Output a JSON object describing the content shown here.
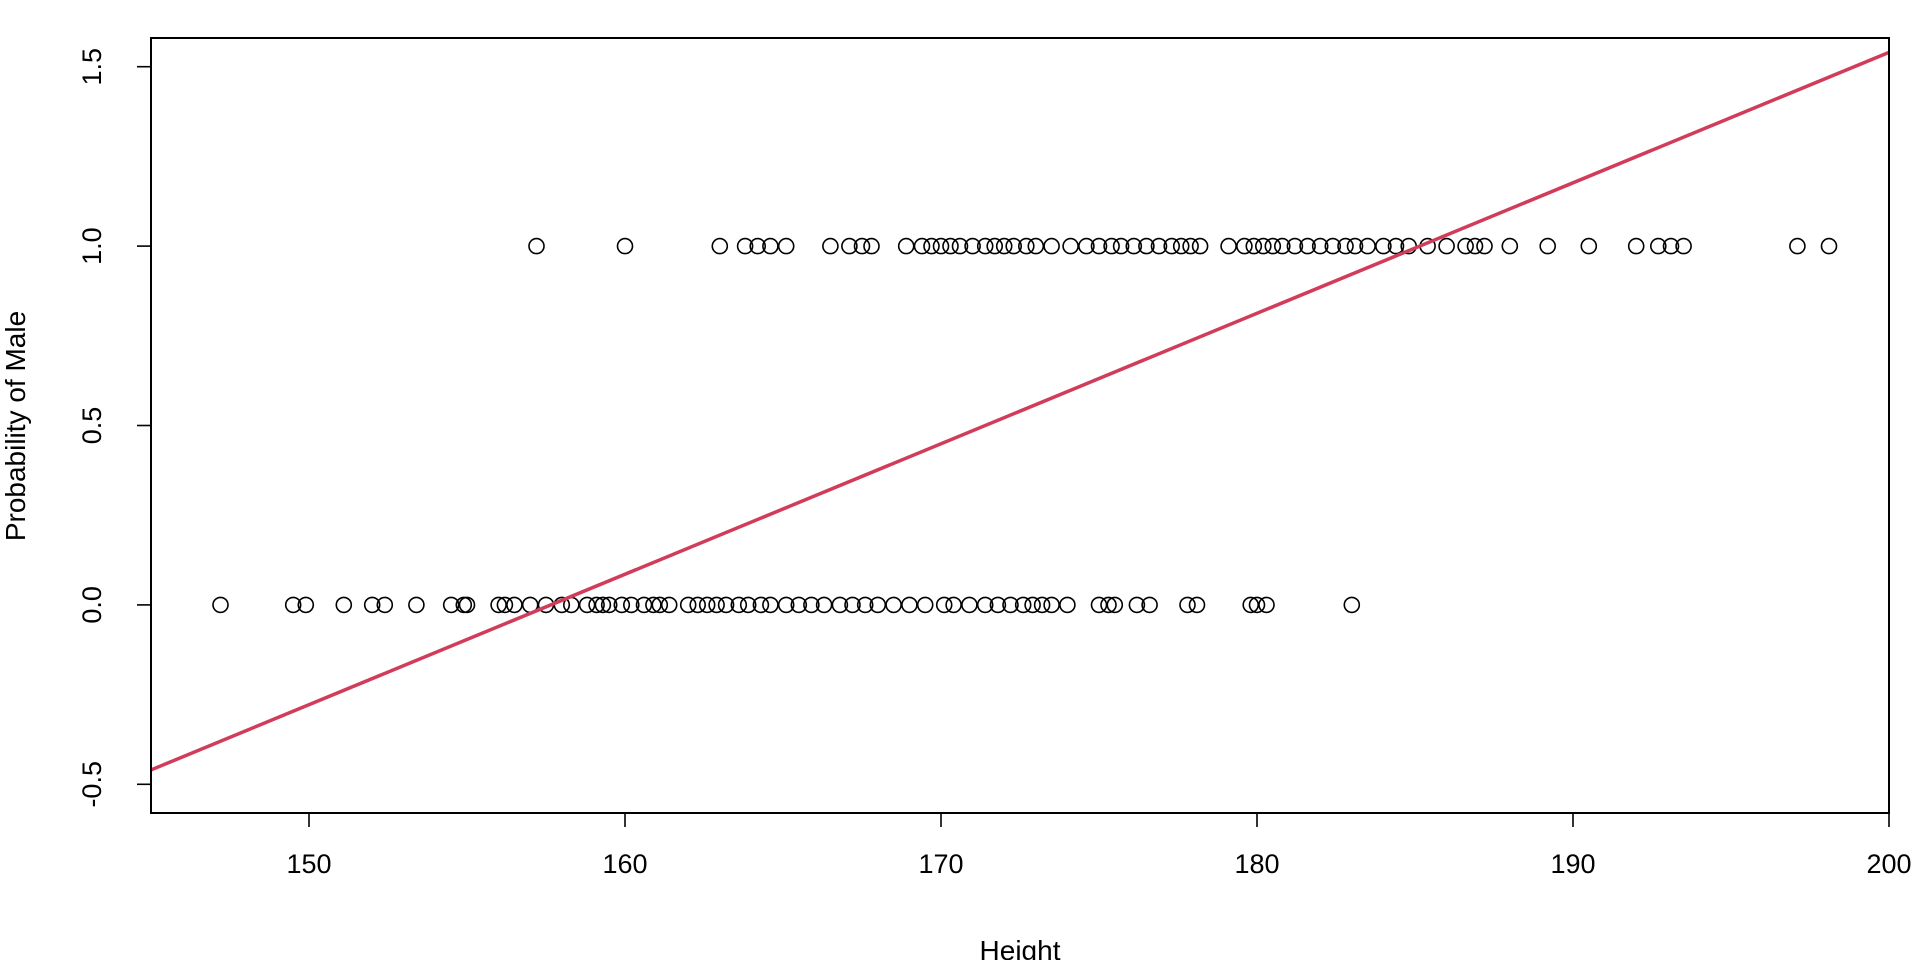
{
  "chart_data": {
    "type": "scatter",
    "title": "",
    "xlabel": "Height",
    "ylabel": "Probability of Male",
    "xlim": [
      145,
      200
    ],
    "ylim": [
      -0.58,
      1.58
    ],
    "xticks": [
      150,
      160,
      170,
      180,
      190,
      200
    ],
    "yticks": [
      -0.5,
      0.0,
      0.5,
      1.0,
      1.5
    ],
    "ytick_labels": [
      "-0.5",
      "0.0",
      "0.5",
      "1.0",
      "1.5"
    ],
    "grid": false,
    "legend": "none",
    "series": [
      {
        "type": "scatter",
        "marker": "open-circle",
        "color": "#000000",
        "points": [
          {
            "x": 147.2,
            "y": 0
          },
          {
            "x": 149.5,
            "y": 0
          },
          {
            "x": 149.9,
            "y": 0
          },
          {
            "x": 151.1,
            "y": 0
          },
          {
            "x": 152.0,
            "y": 0
          },
          {
            "x": 152.4,
            "y": 0
          },
          {
            "x": 153.4,
            "y": 0
          },
          {
            "x": 154.5,
            "y": 0
          },
          {
            "x": 154.9,
            "y": 0
          },
          {
            "x": 155.0,
            "y": 0
          },
          {
            "x": 156.0,
            "y": 0
          },
          {
            "x": 156.2,
            "y": 0
          },
          {
            "x": 156.5,
            "y": 0
          },
          {
            "x": 157.0,
            "y": 0
          },
          {
            "x": 157.5,
            "y": 0
          },
          {
            "x": 158.0,
            "y": 0
          },
          {
            "x": 158.3,
            "y": 0
          },
          {
            "x": 158.8,
            "y": 0
          },
          {
            "x": 159.1,
            "y": 0
          },
          {
            "x": 159.3,
            "y": 0
          },
          {
            "x": 159.5,
            "y": 0
          },
          {
            "x": 159.9,
            "y": 0
          },
          {
            "x": 160.2,
            "y": 0
          },
          {
            "x": 160.6,
            "y": 0
          },
          {
            "x": 160.9,
            "y": 0
          },
          {
            "x": 161.1,
            "y": 0
          },
          {
            "x": 161.4,
            "y": 0
          },
          {
            "x": 162.0,
            "y": 0
          },
          {
            "x": 162.3,
            "y": 0
          },
          {
            "x": 162.6,
            "y": 0
          },
          {
            "x": 162.9,
            "y": 0
          },
          {
            "x": 163.2,
            "y": 0
          },
          {
            "x": 163.6,
            "y": 0
          },
          {
            "x": 163.9,
            "y": 0
          },
          {
            "x": 164.3,
            "y": 0
          },
          {
            "x": 164.6,
            "y": 0
          },
          {
            "x": 165.1,
            "y": 0
          },
          {
            "x": 165.5,
            "y": 0
          },
          {
            "x": 165.9,
            "y": 0
          },
          {
            "x": 166.3,
            "y": 0
          },
          {
            "x": 166.8,
            "y": 0
          },
          {
            "x": 167.2,
            "y": 0
          },
          {
            "x": 167.6,
            "y": 0
          },
          {
            "x": 168.0,
            "y": 0
          },
          {
            "x": 168.5,
            "y": 0
          },
          {
            "x": 169.0,
            "y": 0
          },
          {
            "x": 169.5,
            "y": 0
          },
          {
            "x": 170.1,
            "y": 0
          },
          {
            "x": 170.4,
            "y": 0
          },
          {
            "x": 170.9,
            "y": 0
          },
          {
            "x": 171.4,
            "y": 0
          },
          {
            "x": 171.8,
            "y": 0
          },
          {
            "x": 172.2,
            "y": 0
          },
          {
            "x": 172.6,
            "y": 0
          },
          {
            "x": 172.9,
            "y": 0
          },
          {
            "x": 173.2,
            "y": 0
          },
          {
            "x": 173.5,
            "y": 0
          },
          {
            "x": 174.0,
            "y": 0
          },
          {
            "x": 175.0,
            "y": 0
          },
          {
            "x": 175.3,
            "y": 0
          },
          {
            "x": 175.5,
            "y": 0
          },
          {
            "x": 176.2,
            "y": 0
          },
          {
            "x": 176.6,
            "y": 0
          },
          {
            "x": 177.8,
            "y": 0
          },
          {
            "x": 178.1,
            "y": 0
          },
          {
            "x": 179.8,
            "y": 0
          },
          {
            "x": 180.0,
            "y": 0
          },
          {
            "x": 180.3,
            "y": 0
          },
          {
            "x": 183.0,
            "y": 0
          },
          {
            "x": 157.2,
            "y": 1
          },
          {
            "x": 160.0,
            "y": 1
          },
          {
            "x": 163.0,
            "y": 1
          },
          {
            "x": 163.8,
            "y": 1
          },
          {
            "x": 164.2,
            "y": 1
          },
          {
            "x": 164.6,
            "y": 1
          },
          {
            "x": 165.1,
            "y": 1
          },
          {
            "x": 166.5,
            "y": 1
          },
          {
            "x": 167.1,
            "y": 1
          },
          {
            "x": 167.5,
            "y": 1
          },
          {
            "x": 167.8,
            "y": 1
          },
          {
            "x": 168.9,
            "y": 1
          },
          {
            "x": 169.4,
            "y": 1
          },
          {
            "x": 169.7,
            "y": 1
          },
          {
            "x": 170.0,
            "y": 1
          },
          {
            "x": 170.3,
            "y": 1
          },
          {
            "x": 170.6,
            "y": 1
          },
          {
            "x": 171.0,
            "y": 1
          },
          {
            "x": 171.4,
            "y": 1
          },
          {
            "x": 171.7,
            "y": 1
          },
          {
            "x": 172.0,
            "y": 1
          },
          {
            "x": 172.3,
            "y": 1
          },
          {
            "x": 172.7,
            "y": 1
          },
          {
            "x": 173.0,
            "y": 1
          },
          {
            "x": 173.5,
            "y": 1
          },
          {
            "x": 174.1,
            "y": 1
          },
          {
            "x": 174.6,
            "y": 1
          },
          {
            "x": 175.0,
            "y": 1
          },
          {
            "x": 175.4,
            "y": 1
          },
          {
            "x": 175.7,
            "y": 1
          },
          {
            "x": 176.1,
            "y": 1
          },
          {
            "x": 176.5,
            "y": 1
          },
          {
            "x": 176.9,
            "y": 1
          },
          {
            "x": 177.3,
            "y": 1
          },
          {
            "x": 177.6,
            "y": 1
          },
          {
            "x": 177.9,
            "y": 1
          },
          {
            "x": 178.2,
            "y": 1
          },
          {
            "x": 179.1,
            "y": 1
          },
          {
            "x": 179.6,
            "y": 1
          },
          {
            "x": 179.9,
            "y": 1
          },
          {
            "x": 180.2,
            "y": 1
          },
          {
            "x": 180.5,
            "y": 1
          },
          {
            "x": 180.8,
            "y": 1
          },
          {
            "x": 181.2,
            "y": 1
          },
          {
            "x": 181.6,
            "y": 1
          },
          {
            "x": 182.0,
            "y": 1
          },
          {
            "x": 182.4,
            "y": 1
          },
          {
            "x": 182.8,
            "y": 1
          },
          {
            "x": 183.1,
            "y": 1
          },
          {
            "x": 183.5,
            "y": 1
          },
          {
            "x": 184.0,
            "y": 1
          },
          {
            "x": 184.4,
            "y": 1
          },
          {
            "x": 184.8,
            "y": 1
          },
          {
            "x": 185.4,
            "y": 1
          },
          {
            "x": 186.0,
            "y": 1
          },
          {
            "x": 186.6,
            "y": 1
          },
          {
            "x": 186.9,
            "y": 1
          },
          {
            "x": 187.2,
            "y": 1
          },
          {
            "x": 188.0,
            "y": 1
          },
          {
            "x": 189.2,
            "y": 1
          },
          {
            "x": 190.5,
            "y": 1
          },
          {
            "x": 192.0,
            "y": 1
          },
          {
            "x": 192.7,
            "y": 1
          },
          {
            "x": 193.1,
            "y": 1
          },
          {
            "x": 193.5,
            "y": 1
          },
          {
            "x": 197.1,
            "y": 1
          },
          {
            "x": 198.1,
            "y": 1
          }
        ]
      },
      {
        "type": "line",
        "color": "#d03c5a",
        "x": [
          145,
          200
        ],
        "y": [
          -0.46,
          1.54
        ]
      }
    ]
  }
}
